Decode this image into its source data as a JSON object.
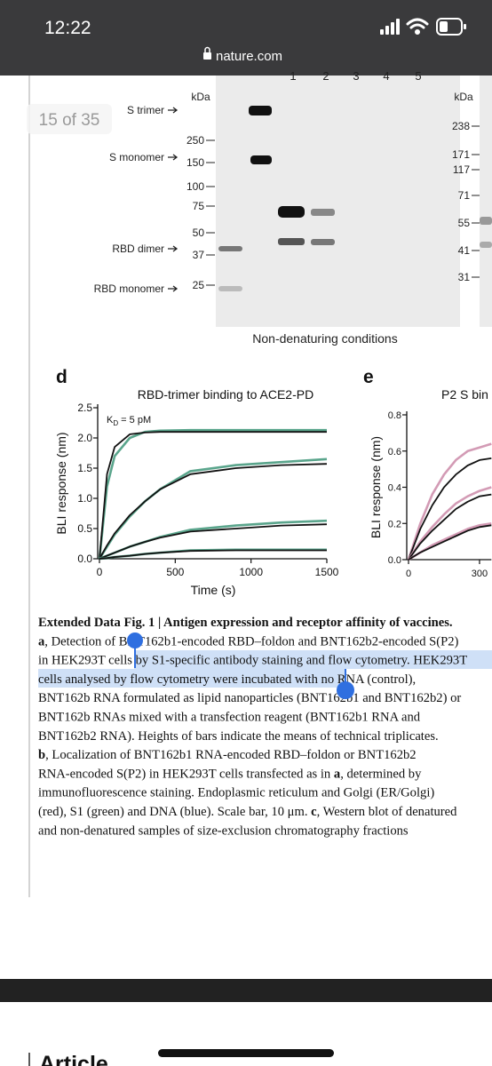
{
  "status_bar": {
    "time": "12:22",
    "url": "nature.com"
  },
  "page_indicator": "15 of 35",
  "blot": {
    "lanes": [
      "1",
      "2",
      "3",
      "4",
      "5"
    ],
    "kda_left_title": "kDa",
    "kda_left": [
      250,
      150,
      100,
      75,
      50,
      37,
      25
    ],
    "kda_right_title": "kDa",
    "kda_right": [
      238,
      171,
      117,
      71,
      55,
      41,
      31
    ],
    "band_labels": [
      "S trimer",
      "S monomer",
      "RBD dimer",
      "RBD monomer"
    ],
    "condition": "Non-denaturing conditions"
  },
  "panel_d": {
    "letter": "d",
    "title": "RBD-trimer binding to ACE2-PD",
    "annotation": "K",
    "annotation_sub": "D",
    "annotation_rest": " = 5 pM",
    "ylabel": "BLI response (nm)",
    "xlabel": "Time (s)",
    "xlim": [
      0,
      1500
    ],
    "ylim": [
      0,
      2.5
    ],
    "xticks": [
      0,
      500,
      1000,
      1500
    ],
    "yticks": [
      {
        "value": 0,
        "label": "0.0"
      },
      0.5,
      {
        "value": 1,
        "label": "1.0"
      },
      1.5,
      {
        "value": 2,
        "label": "2.0"
      },
      2.5
    ],
    "x": [
      0,
      50,
      100,
      200,
      300,
      400,
      600,
      900,
      1200,
      1500
    ],
    "series": [
      {
        "color": "#5aa58c",
        "values": [
          0,
          1.2,
          1.7,
          2.0,
          2.1,
          2.12,
          2.13,
          2.13,
          2.13,
          2.13
        ]
      },
      {
        "color": "#111111",
        "values": [
          0,
          1.4,
          1.85,
          2.06,
          2.09,
          2.1,
          2.1,
          2.1,
          2.1,
          2.1
        ]
      },
      {
        "color": "#5aa58c",
        "values": [
          0,
          0.2,
          0.4,
          0.7,
          0.95,
          1.15,
          1.45,
          1.55,
          1.6,
          1.65
        ]
      },
      {
        "color": "#111111",
        "values": [
          0,
          0.22,
          0.42,
          0.72,
          0.95,
          1.15,
          1.4,
          1.5,
          1.55,
          1.57
        ]
      },
      {
        "color": "#5aa58c",
        "values": [
          0,
          0.05,
          0.1,
          0.2,
          0.28,
          0.36,
          0.48,
          0.55,
          0.6,
          0.63
        ]
      },
      {
        "color": "#111111",
        "values": [
          0,
          0.05,
          0.1,
          0.2,
          0.28,
          0.35,
          0.45,
          0.5,
          0.55,
          0.57
        ]
      },
      {
        "color": "#5aa58c",
        "values": [
          0,
          0.01,
          0.03,
          0.05,
          0.08,
          0.1,
          0.14,
          0.15,
          0.15,
          0.15
        ]
      },
      {
        "color": "#111111",
        "values": [
          0,
          0.01,
          0.03,
          0.05,
          0.08,
          0.1,
          0.13,
          0.14,
          0.14,
          0.14
        ]
      }
    ]
  },
  "panel_e": {
    "letter": "e",
    "title": "P2 S bin",
    "ylabel": "BLI response (nm)",
    "xlim": [
      0,
      350
    ],
    "ylim": [
      0,
      0.8
    ],
    "xticks": [
      0,
      300
    ],
    "yticks": [
      {
        "value": 0,
        "label": "0.0"
      },
      0.2,
      0.4,
      0.6,
      0.8
    ],
    "x": [
      0,
      50,
      100,
      150,
      200,
      250,
      300,
      350
    ],
    "series": [
      {
        "color": "#d39bb5",
        "values": [
          0,
          0.2,
          0.36,
          0.47,
          0.55,
          0.6,
          0.62,
          0.64
        ]
      },
      {
        "color": "#111111",
        "values": [
          0,
          0.17,
          0.3,
          0.4,
          0.47,
          0.52,
          0.55,
          0.56
        ]
      },
      {
        "color": "#d39bb5",
        "values": [
          0,
          0.1,
          0.18,
          0.25,
          0.31,
          0.35,
          0.38,
          0.4
        ]
      },
      {
        "color": "#111111",
        "values": [
          0,
          0.09,
          0.16,
          0.22,
          0.28,
          0.32,
          0.35,
          0.36
        ]
      },
      {
        "color": "#d39bb5",
        "values": [
          0,
          0.04,
          0.08,
          0.11,
          0.14,
          0.17,
          0.19,
          0.2
        ]
      },
      {
        "color": "#111111",
        "values": [
          0,
          0.04,
          0.07,
          0.1,
          0.13,
          0.16,
          0.18,
          0.19
        ]
      }
    ]
  },
  "caption": {
    "lines": [
      [
        {
          "bold": "Extended Data Fig. 1 | Antigen expression and receptor affinity of vaccines."
        }
      ],
      [
        {
          "bold": "a"
        },
        ", Detection of BNT162b1-encoded RBD–foldon and BNT162b2-encoded S(P2)"
      ],
      [
        "in HEK293T cells by S1-specific antibody staining and flow cytometry. HEK293T"
      ],
      [
        "cells analysed by flow cytometry were incubated with no RNA (control),"
      ],
      [
        "BNT162b RNA formulated as lipid nanoparticles (BNT162b1 and BNT162b2) or"
      ],
      [
        "BNT162b RNAs mixed with a transfection reagent (BNT162b1 RNA and"
      ],
      [
        "BNT162b2 RNA). Heights of bars indicate the means of technical triplicates."
      ],
      [
        {
          "bold": "b"
        },
        ", Localization of BNT162b1 RNA-encoded RBD–foldon or BNT162b2"
      ],
      [
        "RNA-encoded S(P2) in HEK293T cells transfected as in ",
        {
          "bold": "a"
        },
        ", determined by"
      ],
      [
        "immunofluorescence staining. Endoplasmic reticulum and Golgi (ER/Golgi)"
      ],
      [
        "(red), S1 (green) and DNA (blue). Scale bar, 10 μm. ",
        {
          "bold": "c"
        },
        ", Western blot of denatured"
      ],
      [
        "and non-denatured samples of size-exclusion chromatography fractions"
      ]
    ]
  },
  "footer": {
    "heading": "Article"
  }
}
